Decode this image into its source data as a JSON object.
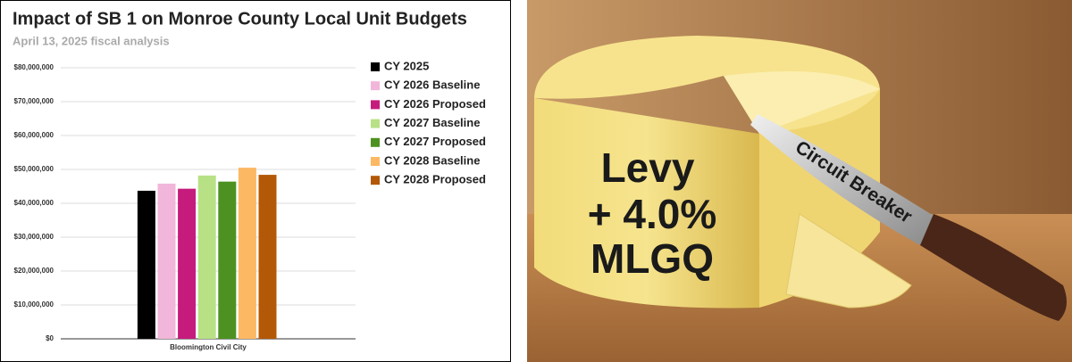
{
  "chart_data": {
    "type": "bar",
    "title": "Impact of SB 1 on Monroe County Local Unit Budgets",
    "subtitle": "April 13, 2025 fiscal analysis",
    "categories": [
      "Bloomington Civil City"
    ],
    "series": [
      {
        "name": "CY 2025",
        "color": "#000000",
        "values": [
          43700000
        ]
      },
      {
        "name": "CY 2026 Baseline",
        "color": "#f1b6da",
        "values": [
          45800000
        ]
      },
      {
        "name": "CY 2026 Proposed",
        "color": "#c51b7d",
        "values": [
          44300000
        ]
      },
      {
        "name": "CY 2027 Baseline",
        "color": "#b8e186",
        "values": [
          48200000
        ]
      },
      {
        "name": "CY 2027 Proposed",
        "color": "#4d9221",
        "values": [
          46400000
        ]
      },
      {
        "name": "CY 2028 Baseline",
        "color": "#fdb863",
        "values": [
          50500000
        ]
      },
      {
        "name": "CY 2028 Proposed",
        "color": "#b35806",
        "values": [
          48400000
        ]
      }
    ],
    "ylim": [
      0,
      80000000
    ],
    "yticks": [
      {
        "value": 0,
        "label": "$0"
      },
      {
        "value": 10000000,
        "label": "$10,000,000"
      },
      {
        "value": 20000000,
        "label": "$20,000,000"
      },
      {
        "value": 30000000,
        "label": "$30,000,000"
      },
      {
        "value": 40000000,
        "label": "$40,000,000"
      },
      {
        "value": 50000000,
        "label": "$50,000,000"
      },
      {
        "value": 60000000,
        "label": "$60,000,000"
      },
      {
        "value": 70000000,
        "label": "$70,000,000"
      },
      {
        "value": 80000000,
        "label": "$80,000,000"
      }
    ],
    "grid": true,
    "legend": "right"
  },
  "illustration": {
    "cheese_label": [
      "Levy",
      "+ 4.0%",
      "MLGQ"
    ],
    "knife_label": "Circuit Breaker"
  }
}
